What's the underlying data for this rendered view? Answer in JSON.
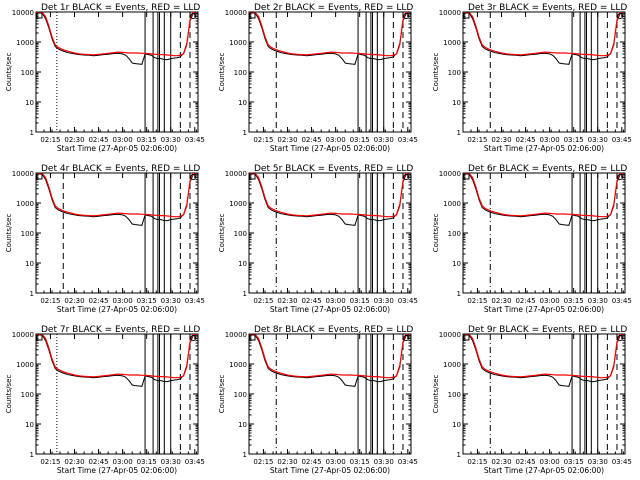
{
  "colors": {
    "events": "#000000",
    "lld": "#ff0000",
    "axis": "#000000",
    "background": "#ffffff"
  },
  "chart_data": {
    "type": "line",
    "yscale": "log",
    "ylim": [
      1,
      10000
    ],
    "xlim": [
      "02:06",
      "03:47"
    ],
    "yticks": [
      {
        "value": 1,
        "label": "1"
      },
      {
        "value": 10,
        "label": "10"
      },
      {
        "value": 100,
        "label": "100"
      },
      {
        "value": 1000,
        "label": "1000"
      },
      {
        "value": 10000,
        "label": "10000"
      }
    ],
    "xticks": [
      {
        "value": "02:15",
        "label": "02:15"
      },
      {
        "value": "02:30",
        "label": "02:30"
      },
      {
        "value": "02:45",
        "label": "02:45"
      },
      {
        "value": "03:00",
        "label": "03:00"
      },
      {
        "value": "03:15",
        "label": "03:15"
      },
      {
        "value": "03:30",
        "label": "03:30"
      },
      {
        "value": "03:45",
        "label": "03:45"
      }
    ],
    "ylabel": "Counts/sec",
    "xlabel": "Start Time (27-Apr-05 02:06:00)",
    "series_legend": "BLACK = Events, RED = LLD",
    "events_times": [
      "02:06",
      "02:08",
      "02:10",
      "02:12",
      "02:14",
      "02:16",
      "02:18",
      "02:20",
      "02:22",
      "02:24",
      "02:26",
      "02:28",
      "02:30",
      "02:33",
      "02:36",
      "02:39",
      "02:42",
      "02:45",
      "02:48",
      "02:51",
      "02:54",
      "02:57",
      "03:00",
      "03:02",
      "03:04",
      "03:06",
      "03:08",
      "03:10",
      "03:12",
      "03:14",
      "03:16",
      "03:18",
      "03:20",
      "03:22",
      "03:24",
      "03:26",
      "03:28",
      "03:30",
      "03:32",
      "03:34",
      "03:36",
      "03:38",
      "03:40",
      "03:42",
      "03:44",
      "03:46"
    ],
    "events_values": [
      10000,
      10000,
      9000,
      6000,
      3000,
      1300,
      700,
      580,
      520,
      480,
      440,
      420,
      400,
      380,
      370,
      360,
      350,
      360,
      380,
      390,
      410,
      420,
      400,
      360,
      280,
      200,
      190,
      185,
      180,
      400,
      380,
      360,
      300,
      280,
      280,
      260,
      260,
      280,
      290,
      300,
      320,
      420,
      900,
      5000,
      9000,
      9500
    ],
    "lld_times": [
      "02:06",
      "02:08",
      "02:10",
      "02:12",
      "02:14",
      "02:16",
      "02:18",
      "02:20",
      "02:22",
      "02:24",
      "02:26",
      "02:28",
      "02:30",
      "02:33",
      "02:36",
      "02:39",
      "02:42",
      "02:45",
      "02:48",
      "02:51",
      "02:54",
      "02:57",
      "03:00",
      "03:02",
      "03:04",
      "03:06",
      "03:08",
      "03:10",
      "03:12",
      "03:14",
      "03:16",
      "03:18",
      "03:20",
      "03:22",
      "03:24",
      "03:26",
      "03:28",
      "03:30",
      "03:32",
      "03:34",
      "03:36",
      "03:38",
      "03:40",
      "03:42",
      "03:44",
      "03:46"
    ],
    "lld_values": [
      10000,
      10000,
      9500,
      7000,
      3500,
      1500,
      800,
      650,
      580,
      530,
      490,
      460,
      430,
      400,
      390,
      380,
      375,
      385,
      400,
      420,
      440,
      460,
      450,
      440,
      430,
      430,
      430,
      430,
      420,
      420,
      410,
      400,
      390,
      385,
      380,
      380,
      370,
      360,
      350,
      350,
      360,
      400,
      800,
      5500,
      10000,
      10000
    ],
    "reference_lines": [
      {
        "time": "02:19",
        "style": "dotted"
      },
      {
        "time": "02:23",
        "style": "dashed"
      },
      {
        "time": "03:36",
        "style": "dashed"
      },
      {
        "time": "03:42",
        "style": "dashed"
      }
    ],
    "boxes": [
      {
        "start": "03:14",
        "end": "03:19"
      },
      {
        "start": "03:22",
        "end": "03:23"
      },
      {
        "start": "03:26",
        "end": "03:30"
      }
    ],
    "panels": [
      {
        "title": "Det 1r BLACK = Events, RED = LLD",
        "ref_time": "02:19",
        "ref_style": "dotted"
      },
      {
        "title": "Det 2r BLACK = Events, RED = LLD",
        "ref_time": "02:23",
        "ref_style": "dashed"
      },
      {
        "title": "Det 3r BLACK = Events, RED = LLD",
        "ref_time": "02:23",
        "ref_style": "dashed"
      },
      {
        "title": "Det 4r BLACK = Events, RED = LLD",
        "ref_time": "02:23",
        "ref_style": "dashed"
      },
      {
        "title": "Det 5r BLACK = Events, RED = LLD",
        "ref_time": "02:23",
        "ref_style": "dashdot"
      },
      {
        "title": "Det 6r BLACK = Events, RED = LLD",
        "ref_time": "02:23",
        "ref_style": "dashdot"
      },
      {
        "title": "Det 7r BLACK = Events, RED = LLD",
        "ref_time": "02:19",
        "ref_style": "dotted"
      },
      {
        "title": "Det 8r BLACK = Events, RED = LLD",
        "ref_time": "02:23",
        "ref_style": "dashdot"
      },
      {
        "title": "Det 9r BLACK = Events, RED = LLD",
        "ref_time": "02:23",
        "ref_style": "dashdot"
      }
    ]
  }
}
